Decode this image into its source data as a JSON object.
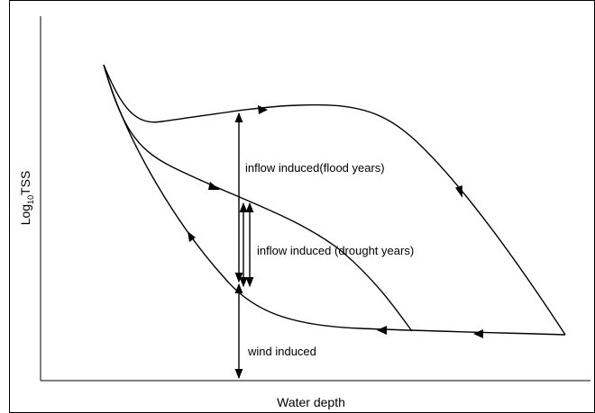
{
  "axes": {
    "y_label": {
      "main": "Log",
      "sub": "10",
      "rest": "TSS"
    },
    "x_label": "Water depth"
  },
  "annotations": {
    "flood": "inflow induced(flood years)",
    "drought": "inflow induced (drought years)",
    "wind": "wind induced"
  }
}
